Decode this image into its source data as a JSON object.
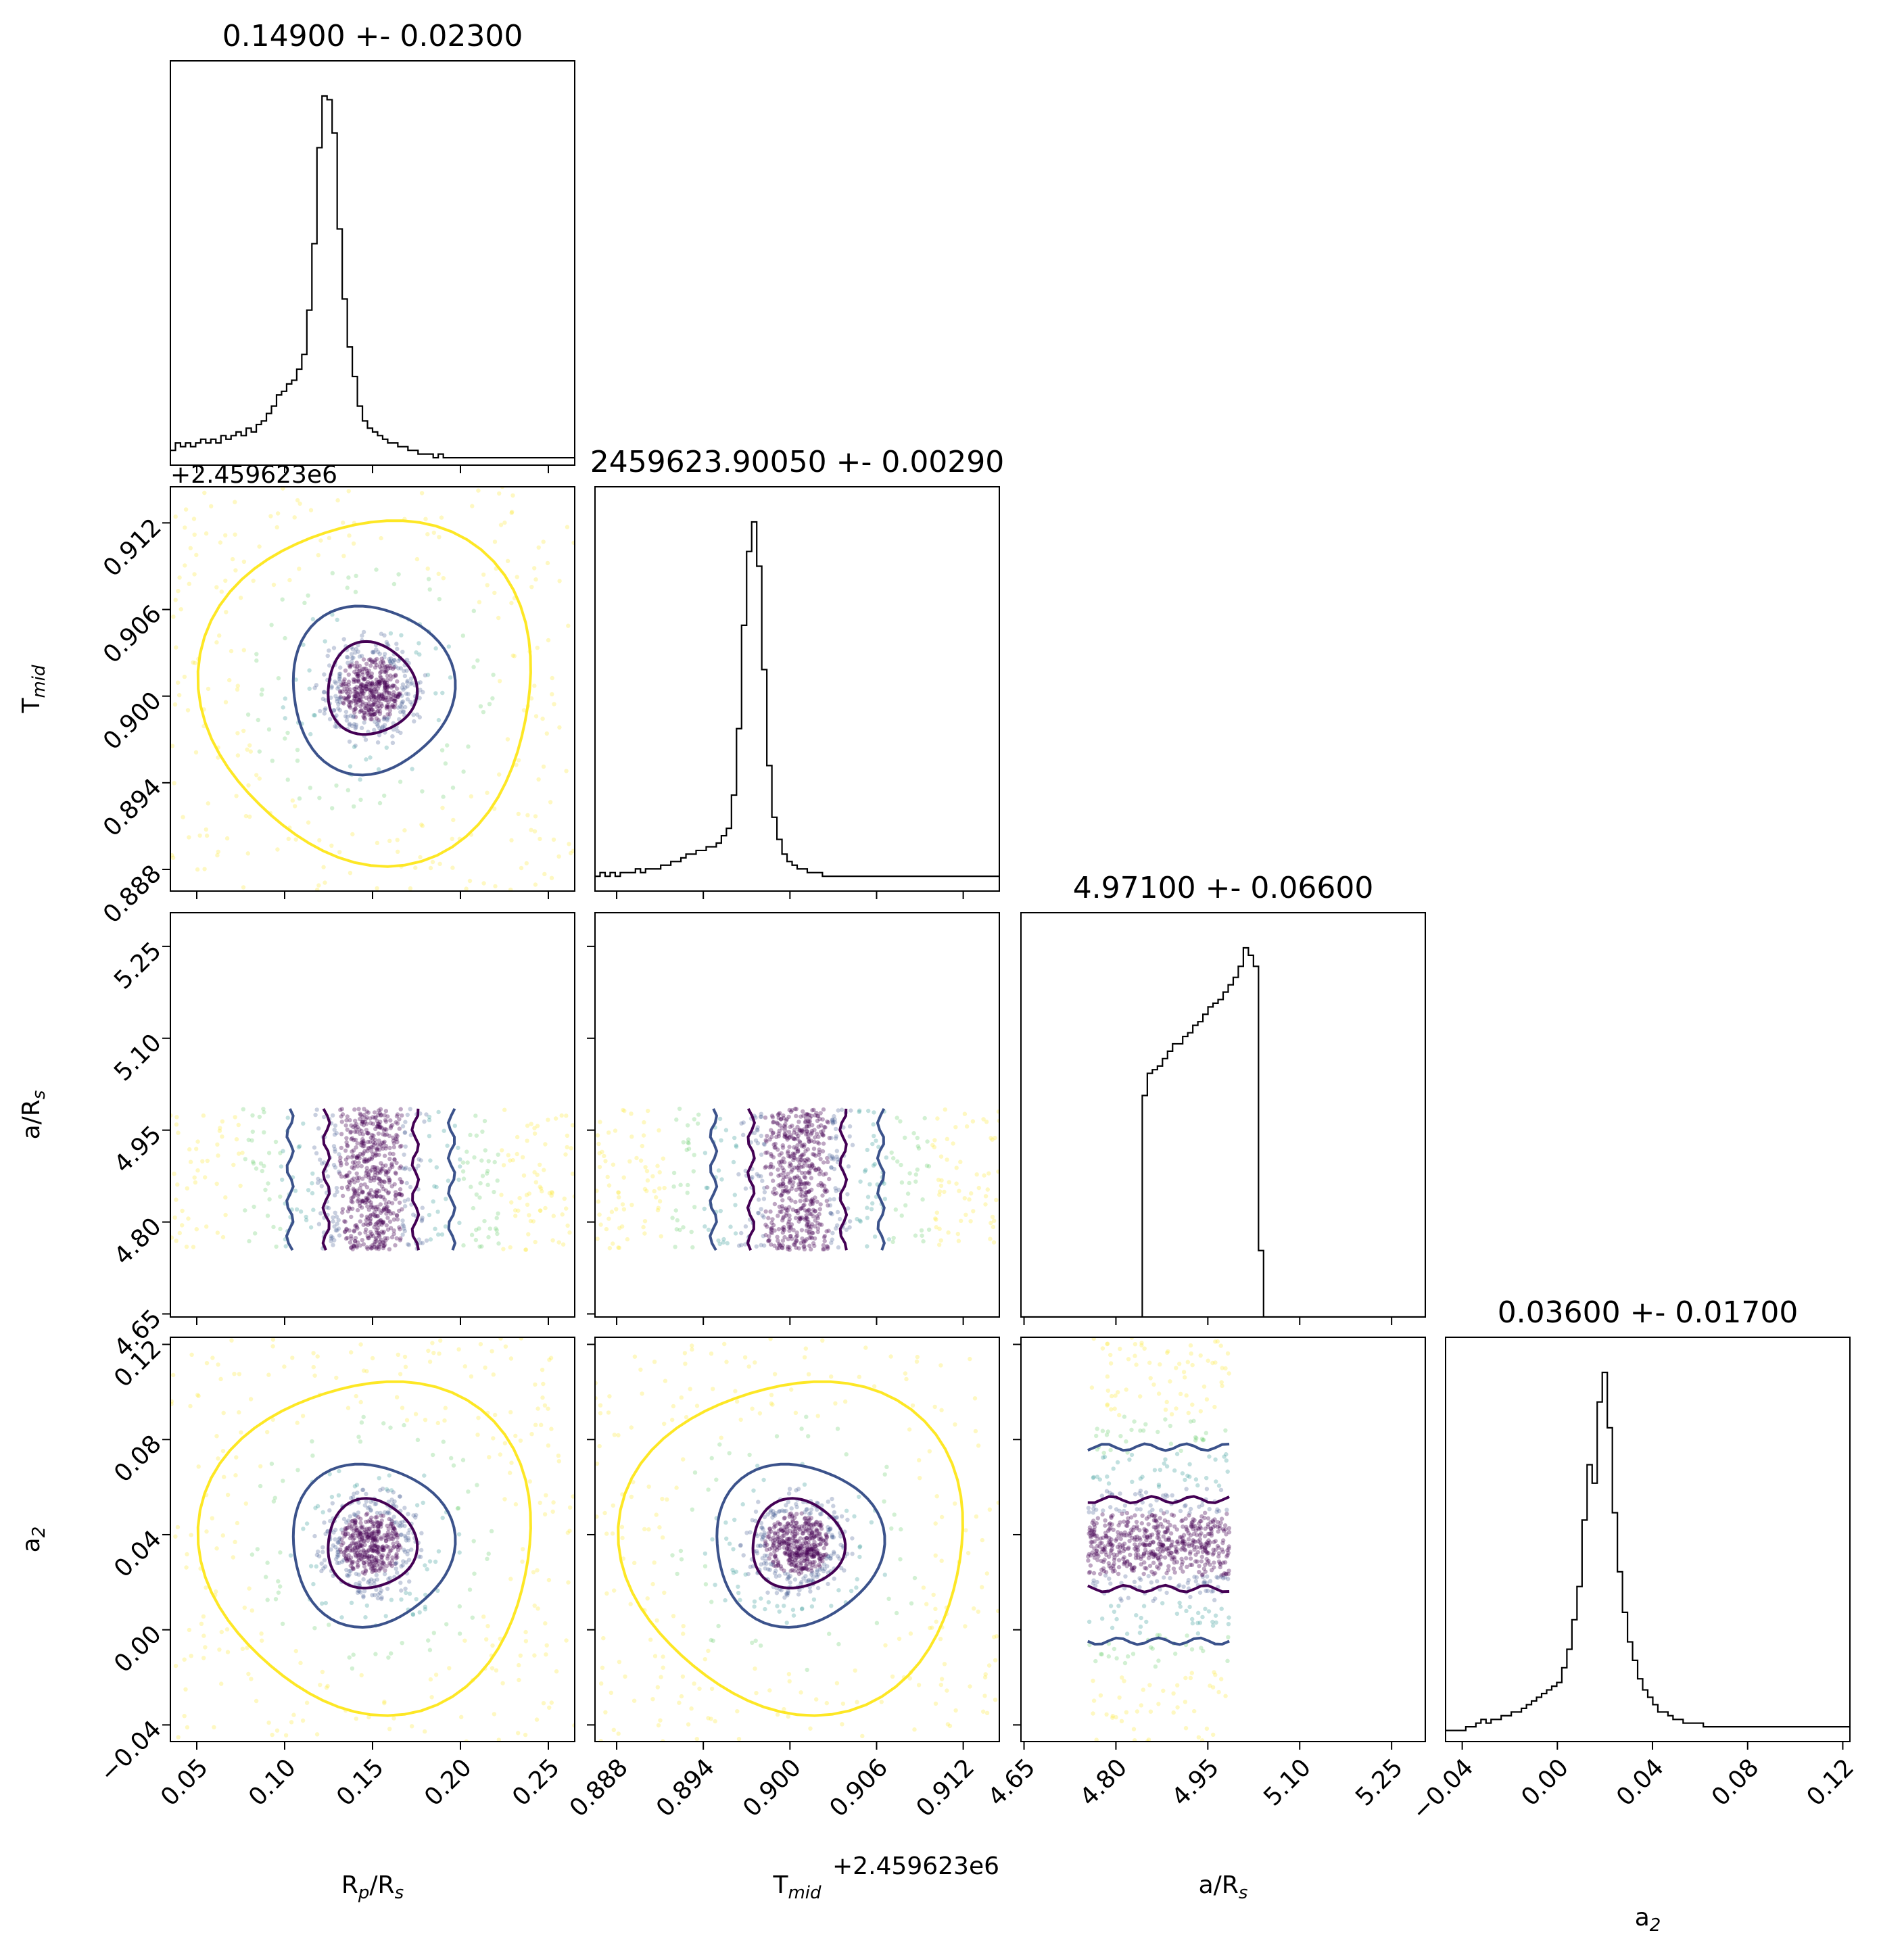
{
  "chart_data": {
    "type": "corner",
    "parameters": [
      {
        "id": "rp",
        "label": "R",
        "sub": "p",
        "label_suffix": "/R",
        "sub2": "s",
        "range": [
          0.035,
          0.265
        ],
        "ticks": [
          0.05,
          0.1,
          0.15,
          0.2,
          0.25
        ],
        "tick_labels": [
          "0.05",
          "0.10",
          "0.15",
          "0.20",
          "0.25"
        ],
        "center": 0.149,
        "sigma": 0.023,
        "title": "0.14900 +- 0.02300"
      },
      {
        "id": "tmid",
        "label": "T",
        "sub": "mid",
        "label_suffix": "",
        "sub2": "",
        "range": [
          0.8865,
          0.9145
        ],
        "ticks": [
          0.888,
          0.894,
          0.9,
          0.906,
          0.912
        ],
        "tick_labels": [
          "0.888",
          "0.894",
          "0.900",
          "0.906",
          "0.912"
        ],
        "center": 0.9005,
        "sigma": 0.0029,
        "offset_text": "+2.459623e6",
        "title": "2459623.90050 +- 0.00290"
      },
      {
        "id": "ars",
        "label": "a/R",
        "sub": "s",
        "label_suffix": "",
        "sub2": "",
        "range": [
          4.645,
          5.305
        ],
        "ticks": [
          4.65,
          4.8,
          4.95,
          5.1,
          5.25
        ],
        "tick_labels": [
          "4.65",
          "4.80",
          "4.95",
          "5.10",
          "5.25"
        ],
        "center": 4.971,
        "sigma": 0.066,
        "uniform": [
          4.754,
          4.985
        ],
        "title": "4.97100 +- 0.06600"
      },
      {
        "id": "a2",
        "label": "a",
        "sub": "2",
        "label_suffix": "",
        "sub2": "",
        "range": [
          -0.047,
          0.123
        ],
        "ticks": [
          -0.04,
          0.0,
          0.04,
          0.08,
          0.12
        ],
        "tick_labels": [
          "−0.04",
          "0.00",
          "0.04",
          "0.08",
          "0.12"
        ],
        "center": 0.036,
        "sigma": 0.017,
        "title": "0.03600 +- 0.01700"
      }
    ],
    "histograms": [
      {
        "param": "rp",
        "bins": 80,
        "heights": [
          0.04,
          0.06,
          0.05,
          0.06,
          0.05,
          0.06,
          0.07,
          0.06,
          0.07,
          0.06,
          0.08,
          0.07,
          0.08,
          0.09,
          0.08,
          0.1,
          0.09,
          0.11,
          0.12,
          0.14,
          0.16,
          0.19,
          0.2,
          0.22,
          0.23,
          0.26,
          0.3,
          0.42,
          0.6,
          0.86,
          1.0,
          0.99,
          0.9,
          0.64,
          0.45,
          0.32,
          0.24,
          0.16,
          0.12,
          0.1,
          0.09,
          0.08,
          0.07,
          0.06,
          0.06,
          0.05,
          0.05,
          0.04,
          0.04,
          0.03,
          0.03,
          0.03,
          0.02,
          0.03,
          0.02,
          0.02,
          0.02,
          0.02,
          0.02,
          0.02,
          0.02,
          0.02,
          0.02,
          0.02,
          0.02,
          0.02,
          0.02,
          0.02,
          0.02,
          0.02,
          0.02,
          0.02,
          0.02,
          0.02,
          0.02,
          0.02,
          0.02,
          0.02,
          0.02,
          0.02
        ]
      },
      {
        "param": "tmid",
        "bins": 80,
        "heights": [
          0.04,
          0.05,
          0.04,
          0.05,
          0.04,
          0.05,
          0.05,
          0.05,
          0.06,
          0.05,
          0.06,
          0.06,
          0.06,
          0.07,
          0.07,
          0.08,
          0.08,
          0.09,
          0.1,
          0.1,
          0.11,
          0.11,
          0.12,
          0.12,
          0.13,
          0.15,
          0.17,
          0.26,
          0.44,
          0.72,
          0.92,
          1.0,
          0.88,
          0.6,
          0.34,
          0.2,
          0.14,
          0.1,
          0.08,
          0.07,
          0.06,
          0.06,
          0.05,
          0.05,
          0.05,
          0.04,
          0.04,
          0.04,
          0.04,
          0.04,
          0.04,
          0.04,
          0.04,
          0.04,
          0.04,
          0.04,
          0.04,
          0.04,
          0.04,
          0.04,
          0.04,
          0.04,
          0.04,
          0.04,
          0.04,
          0.04,
          0.04,
          0.04,
          0.04,
          0.04,
          0.04,
          0.04,
          0.04,
          0.04,
          0.04,
          0.04,
          0.04,
          0.04,
          0.04,
          0.04
        ]
      },
      {
        "param": "ars",
        "bins": 80,
        "heights": [
          0,
          0,
          0,
          0,
          0,
          0,
          0,
          0,
          0,
          0,
          0,
          0,
          0,
          0,
          0,
          0,
          0,
          0,
          0,
          0,
          0,
          0,
          0,
          0,
          0.6,
          0.66,
          0.67,
          0.68,
          0.7,
          0.72,
          0.74,
          0.74,
          0.76,
          0.77,
          0.79,
          0.8,
          0.82,
          0.84,
          0.85,
          0.86,
          0.88,
          0.9,
          0.92,
          0.95,
          1.0,
          0.98,
          0.95,
          0.18,
          0,
          0,
          0,
          0,
          0,
          0,
          0,
          0,
          0,
          0,
          0,
          0,
          0,
          0,
          0,
          0,
          0,
          0,
          0,
          0,
          0,
          0,
          0,
          0,
          0,
          0,
          0,
          0,
          0,
          0,
          0,
          0
        ]
      },
      {
        "param": "a2",
        "bins": 80,
        "heights": [
          0.03,
          0.03,
          0.03,
          0.03,
          0.04,
          0.04,
          0.05,
          0.06,
          0.05,
          0.06,
          0.06,
          0.07,
          0.07,
          0.08,
          0.08,
          0.09,
          0.1,
          0.11,
          0.12,
          0.13,
          0.14,
          0.15,
          0.16,
          0.2,
          0.25,
          0.33,
          0.42,
          0.6,
          0.75,
          0.7,
          0.92,
          1.0,
          0.85,
          0.62,
          0.46,
          0.35,
          0.27,
          0.22,
          0.17,
          0.14,
          0.12,
          0.1,
          0.08,
          0.08,
          0.07,
          0.06,
          0.06,
          0.05,
          0.05,
          0.05,
          0.05,
          0.04,
          0.04,
          0.04,
          0.04,
          0.04,
          0.04,
          0.04,
          0.04,
          0.04,
          0.04,
          0.04,
          0.04,
          0.04,
          0.04,
          0.04,
          0.04,
          0.04,
          0.04,
          0.04,
          0.04,
          0.04,
          0.04,
          0.04,
          0.04,
          0.04,
          0.04,
          0.04,
          0.04,
          0.04
        ]
      }
    ],
    "colors": {
      "hist_line": "#000000",
      "level_inner": "#440154",
      "level_mid": "#3b528b",
      "level_outer": "#fde725",
      "scatter_palette": [
        "#440154",
        "#3b528b",
        "#21918c",
        "#5ec962",
        "#fde725"
      ]
    },
    "contour_levels": 3,
    "grid": false,
    "legend": "none"
  }
}
